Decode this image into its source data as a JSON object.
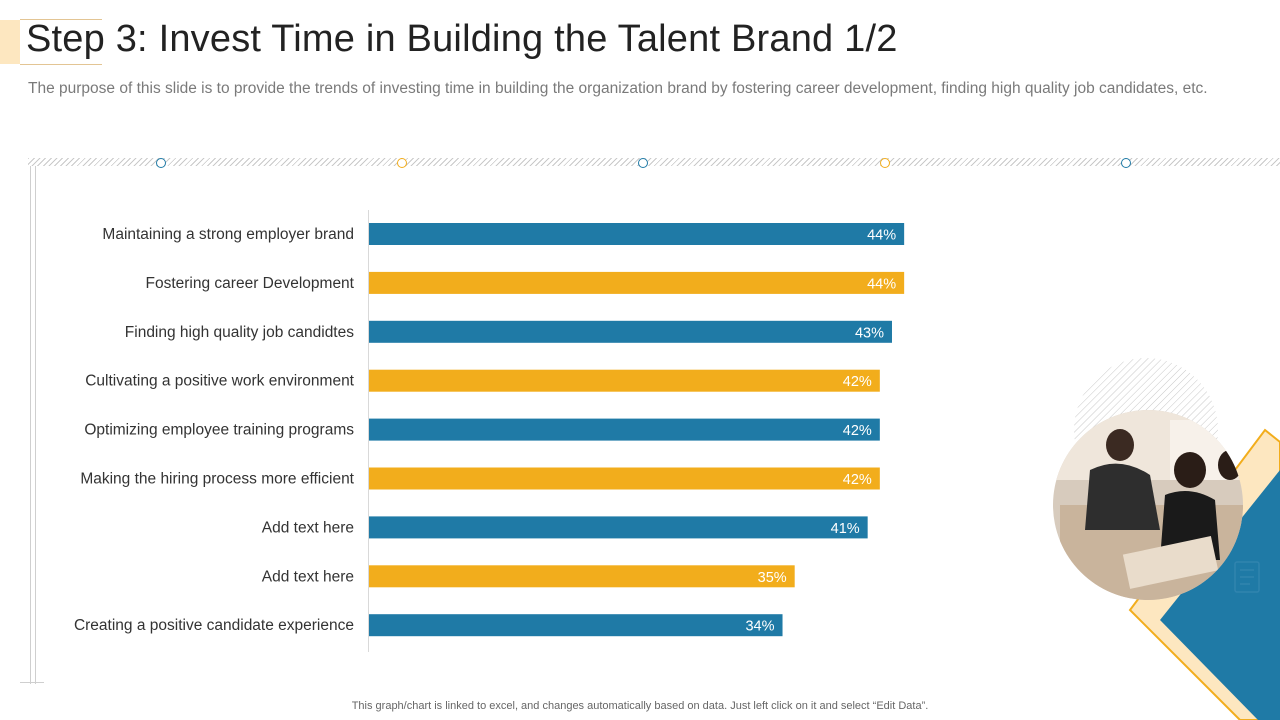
{
  "header": {
    "title": "Step 3: Invest Time in Building the Talent Brand 1/2",
    "subtitle": "The purpose of this slide is to provide the trends of investing time in building the organization brand by fostering career development, finding high quality job candidates, etc."
  },
  "chart_data": {
    "type": "bar",
    "orientation": "horizontal",
    "categories": [
      "Maintaining a strong employer brand",
      "Fostering career Development",
      "Finding high quality job candidtes",
      "Cultivating a positive work environment",
      "Optimizing employee training programs",
      "Making the hiring process more efficient",
      "Add text here",
      "Add text here",
      "Creating a positive candidate experience"
    ],
    "values": [
      44,
      44,
      43,
      42,
      42,
      42,
      41,
      35,
      34
    ],
    "data_labels": [
      "44%",
      "44%",
      "43%",
      "42%",
      "42%",
      "42%",
      "41%",
      "35%",
      "34%"
    ],
    "bar_colors": [
      "#1f7aa6",
      "#f2ad1c",
      "#1f7aa6",
      "#f2ad1c",
      "#1f7aa6",
      "#f2ad1c",
      "#1f7aa6",
      "#f2ad1c",
      "#1f7aa6"
    ],
    "xlim": [
      0,
      80
    ],
    "title": "",
    "xlabel": "",
    "ylabel": ""
  },
  "colors": {
    "blue": "#1f7aa6",
    "orange": "#f2ad1c",
    "cream": "#fde7c0"
  },
  "footer": {
    "note": "This graph/chart is linked to excel, and changes automatically based on data. Just left click on it and select “Edit Data”."
  }
}
